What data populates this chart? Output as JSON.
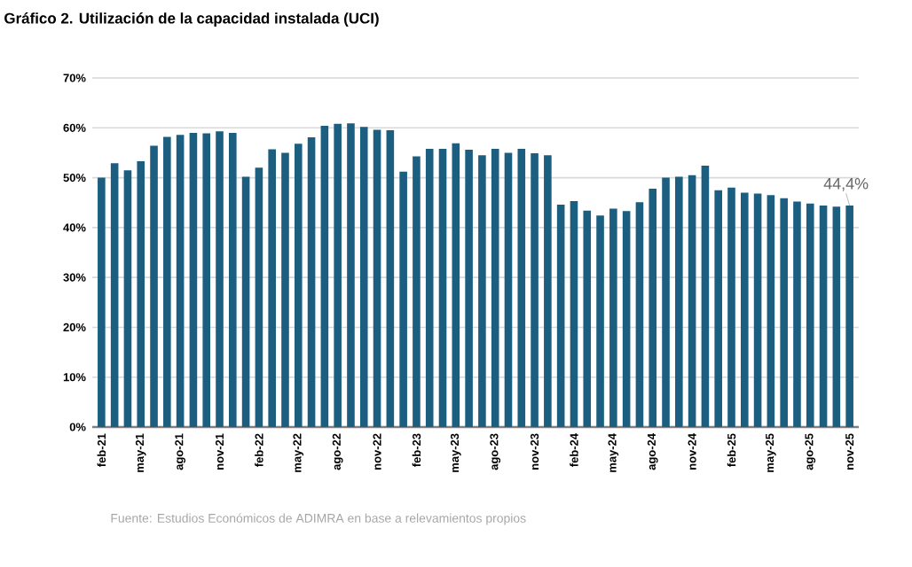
{
  "chart_data": {
    "type": "bar",
    "title": "Gráfico 2. Utilización de la capacidad instalada (UCI)",
    "categories": [
      "feb-21",
      null,
      null,
      "may-21",
      null,
      null,
      "ago-21",
      null,
      null,
      "nov-21",
      null,
      null,
      "feb-22",
      null,
      null,
      "may-22",
      null,
      null,
      "ago-22",
      null,
      null,
      "nov-22",
      null,
      null,
      "feb-23",
      null,
      null,
      "may-23",
      null,
      null,
      "ago-23",
      null,
      null,
      "nov-23",
      null,
      null,
      "feb-24",
      null,
      null,
      "may-24",
      null,
      null,
      "ago-24",
      null,
      null,
      "nov-24",
      null,
      null,
      "feb-25",
      null,
      null,
      "may-25",
      null,
      null,
      "ago-25",
      null,
      null,
      "nov-25"
    ],
    "values": [
      50,
      52.9,
      51.5,
      53.3,
      56.4,
      58.2,
      58.6,
      59,
      58.9,
      59.3,
      59,
      50.2,
      52,
      55.7,
      55,
      56.8,
      58.1,
      60.4,
      60.8,
      60.9,
      60.2,
      59.6,
      59.5,
      51.2,
      54.3,
      55.8,
      55.8,
      56.9,
      55.6,
      54.5,
      55.8,
      55,
      55.8,
      54.9,
      54.5,
      44.6,
      45.3,
      43.4,
      42.4,
      43.8,
      43.3,
      45.1,
      47.8,
      50,
      50.2,
      50.5,
      52.4,
      47.5,
      48,
      47,
      46.8,
      46.5,
      45.9,
      45.2,
      44.8,
      44.4,
      44.2,
      44.4
    ],
    "color": "#1c5e80",
    "ylim": [
      0,
      70
    ],
    "yticks": [
      {
        "value": 0,
        "label": "0%"
      },
      {
        "value": 10,
        "label": "10%"
      },
      {
        "value": 20,
        "label": "20%"
      },
      {
        "value": 30,
        "label": "30%"
      },
      {
        "value": 40,
        "label": "40%"
      },
      {
        "value": 50,
        "label": "50%"
      },
      {
        "value": 60,
        "label": "60%"
      },
      {
        "value": 70,
        "label": "70%"
      }
    ],
    "grid": "y",
    "annotations": [
      {
        "text": "44,4%",
        "x": "nov-25",
        "y": 44.4
      },
      "Fuente: Estudios Económicos de ADIMRA en base a relevamientos propios"
    ]
  }
}
